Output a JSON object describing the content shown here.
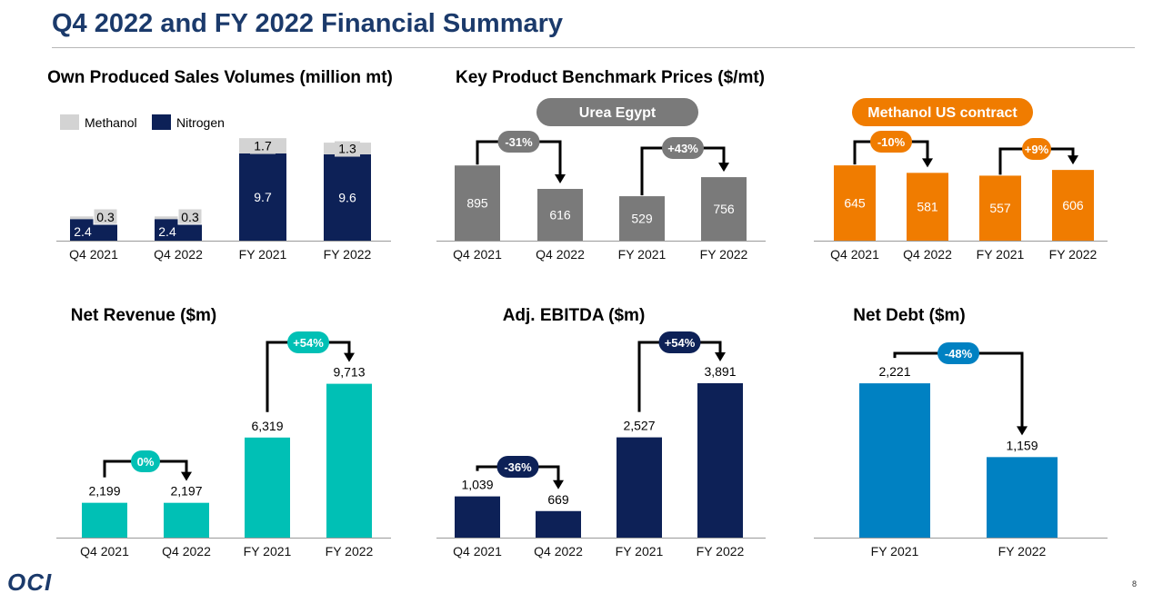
{
  "page": {
    "title": "Q4 2022 and FY 2022 Financial Summary",
    "logo": "OCI",
    "page_number": "8"
  },
  "colors": {
    "title": "#1b3a6b",
    "navy": "#0d2157",
    "light_gray": "#d3d3d3",
    "gray": "#7a7a7a",
    "orange": "#f07c00",
    "teal": "#00c0b5",
    "blue": "#0081c2"
  },
  "chart_data": [
    {
      "id": "sales-volumes",
      "type": "bar",
      "stacked": true,
      "title": "Own Produced Sales Volumes (million mt)",
      "categories": [
        "Q4 2021",
        "Q4 2022",
        "FY 2021",
        "FY 2022"
      ],
      "series": [
        {
          "name": "Nitrogen",
          "values": [
            2.4,
            2.4,
            9.7,
            9.6
          ],
          "labels": [
            "2.4",
            "2.4",
            "9.7",
            "9.6"
          ],
          "color": "#0d2157"
        },
        {
          "name": "Methanol",
          "values": [
            0.3,
            0.3,
            1.7,
            1.3
          ],
          "labels": [
            "0.3",
            "0.3",
            "1.7",
            "1.3"
          ],
          "color": "#d3d3d3"
        }
      ],
      "legend": [
        "Methanol",
        "Nitrogen"
      ],
      "legend_position": "top-left"
    },
    {
      "id": "urea-egypt",
      "type": "bar",
      "title": "Key Product Benchmark Prices ($/mt)",
      "subtitle": "Urea Egypt",
      "categories": [
        "Q4 2021",
        "Q4 2022",
        "FY 2021",
        "FY 2022"
      ],
      "values": [
        895,
        616,
        529,
        756
      ],
      "labels": [
        "895",
        "616",
        "529",
        "756"
      ],
      "color": "#7a7a7a",
      "changes": [
        {
          "from": 0,
          "to": 1,
          "label": "-31%"
        },
        {
          "from": 2,
          "to": 3,
          "label": "+43%"
        }
      ]
    },
    {
      "id": "methanol-us",
      "type": "bar",
      "subtitle": "Methanol US contract",
      "categories": [
        "Q4 2021",
        "Q4 2022",
        "FY 2021",
        "FY 2022"
      ],
      "values": [
        645,
        581,
        557,
        606
      ],
      "labels": [
        "645",
        "581",
        "557",
        "606"
      ],
      "color": "#f07c00",
      "changes": [
        {
          "from": 0,
          "to": 1,
          "label": "-10%"
        },
        {
          "from": 2,
          "to": 3,
          "label": "+9%"
        }
      ]
    },
    {
      "id": "net-revenue",
      "type": "bar",
      "title": "Net Revenue ($m)",
      "categories": [
        "Q4 2021",
        "Q4 2022",
        "FY 2021",
        "FY 2022"
      ],
      "values": [
        2199,
        2197,
        6319,
        9713
      ],
      "labels": [
        "2,199",
        "2,197",
        "6,319",
        "9,713"
      ],
      "color": "#00c0b5",
      "changes": [
        {
          "from": 0,
          "to": 1,
          "label": "0%"
        },
        {
          "from": 2,
          "to": 3,
          "label": "+54%"
        }
      ]
    },
    {
      "id": "adj-ebitda",
      "type": "bar",
      "title": "Adj. EBITDA ($m)",
      "categories": [
        "Q4 2021",
        "Q4 2022",
        "FY 2021",
        "FY 2022"
      ],
      "values": [
        1039,
        669,
        2527,
        3891
      ],
      "labels": [
        "1,039",
        "669",
        "2,527",
        "3,891"
      ],
      "color": "#0d2157",
      "changes": [
        {
          "from": 0,
          "to": 1,
          "label": "-36%"
        },
        {
          "from": 2,
          "to": 3,
          "label": "+54%"
        }
      ]
    },
    {
      "id": "net-debt",
      "type": "bar",
      "title": "Net Debt ($m)",
      "categories": [
        "FY 2021",
        "FY 2022"
      ],
      "values": [
        2221,
        1159
      ],
      "labels": [
        "2,221",
        "1,159"
      ],
      "color": "#0081c2",
      "changes": [
        {
          "from": 0,
          "to": 1,
          "label": "-48%"
        }
      ]
    }
  ]
}
